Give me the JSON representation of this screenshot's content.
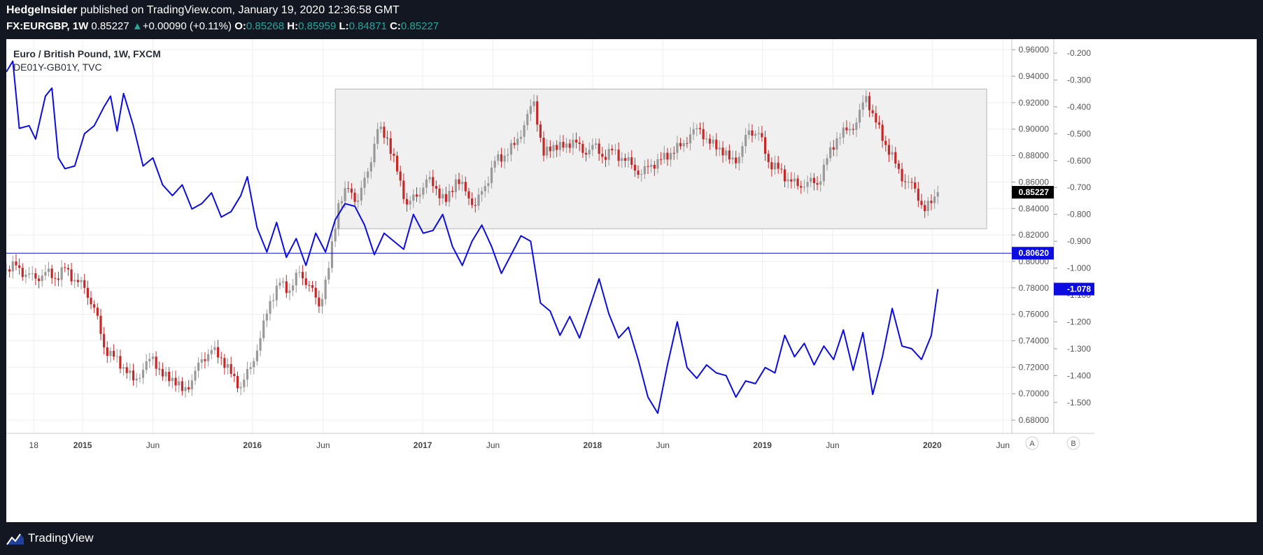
{
  "header": {
    "author": "HedgeInsider",
    "published_text": "published on TradingView.com, January 19, 2020 12:36:58 GMT",
    "symbol": "FX:EURGBP, 1W",
    "last": "0.85227",
    "change_arrow": "▲",
    "change": "+0.00090 (+0.11%)",
    "o_label": "O:",
    "o_value": "0.85268",
    "h_label": "H:",
    "h_value": "0.85959",
    "l_label": "L:",
    "l_value": "0.84871",
    "c_label": "C:",
    "c_value": "0.85227"
  },
  "footer": {
    "brand": "TradingView",
    "logo_icon": "tradingview-logo-icon"
  },
  "scale_buttons": [
    "A",
    "B"
  ],
  "colors": {
    "up_candle": "#999999",
    "down_candle": "#c62828",
    "spread_line": "#0c0ce0",
    "price_label_bg": "#000000",
    "range_box_fill": "#f0f0f0"
  },
  "chart_data": {
    "type": "candlestick",
    "title": "Euro / British Pound, 1W, FXCM",
    "subtitle": "DE01Y-GB01Y, TVC",
    "x_tick_labels": [
      "18",
      "2015",
      "Jun",
      "2016",
      "Jun",
      "2017",
      "Jun",
      "2018",
      "Jun",
      "2019",
      "Jun",
      "2020",
      "Jun"
    ],
    "x_tick_dates": [
      "2014-09-18",
      "2015-01-01",
      "2015-06-01",
      "2016-01-01",
      "2016-06-01",
      "2017-01-01",
      "2017-06-01",
      "2018-01-01",
      "2018-06-01",
      "2019-01-01",
      "2019-06-01",
      "2020-01-01",
      "2020-06-01"
    ],
    "x_range": [
      "2014-07-21",
      "2020-06-20"
    ],
    "grid": true,
    "price_axis": {
      "ticks": [
        "0.68000",
        "0.70000",
        "0.72000",
        "0.74000",
        "0.76000",
        "0.78000",
        "0.80000",
        "0.82000",
        "0.84000",
        "0.86000",
        "0.88000",
        "0.90000",
        "0.92000",
        "0.94000",
        "0.96000"
      ],
      "range": [
        0.67,
        0.968
      ]
    },
    "spread_axis": {
      "ticks": [
        "-0.200",
        "-0.300",
        "-0.400",
        "-0.500",
        "-0.600",
        "-0.700",
        "-0.800",
        "-0.900",
        "-1.000",
        "-1.100",
        "-1.200",
        "-1.300",
        "-1.400",
        "-1.500"
      ],
      "range": [
        -1.615,
        -0.148
      ]
    },
    "current_price_label": "0.85227",
    "current_price": 0.85227,
    "horizontal_line_label": "0.80620",
    "horizontal_line": 0.8062,
    "spread_current_label": "-1.078",
    "spread_current": -1.078,
    "range_box": {
      "from": "2016-06-27",
      "to": "2020-04-27",
      "low": 0.8247,
      "high": 0.9303
    },
    "price_series": {
      "name": "EURGBP",
      "points": [
        [
          "2014-07-21",
          0.794
        ],
        [
          "2014-08-11",
          0.797
        ],
        [
          "2014-09-01",
          0.79
        ],
        [
          "2014-09-22",
          0.787
        ],
        [
          "2014-10-13",
          0.792
        ],
        [
          "2014-11-03",
          0.787
        ],
        [
          "2014-11-24",
          0.795
        ],
        [
          "2014-12-15",
          0.786
        ],
        [
          "2015-01-05",
          0.78
        ],
        [
          "2015-01-26",
          0.765
        ],
        [
          "2015-02-16",
          0.735
        ],
        [
          "2015-03-09",
          0.728
        ],
        [
          "2015-03-30",
          0.72
        ],
        [
          "2015-04-20",
          0.71
        ],
        [
          "2015-05-11",
          0.718
        ],
        [
          "2015-06-01",
          0.728
        ],
        [
          "2015-06-22",
          0.713
        ],
        [
          "2015-07-13",
          0.712
        ],
        [
          "2015-08-03",
          0.702
        ],
        [
          "2015-08-24",
          0.71
        ],
        [
          "2015-09-14",
          0.726
        ],
        [
          "2015-10-05",
          0.733
        ],
        [
          "2015-10-26",
          0.727
        ],
        [
          "2015-11-16",
          0.715
        ],
        [
          "2015-12-07",
          0.705
        ],
        [
          "2015-12-28",
          0.72
        ],
        [
          "2016-01-18",
          0.742
        ],
        [
          "2016-02-08",
          0.77
        ],
        [
          "2016-02-29",
          0.784
        ],
        [
          "2016-03-21",
          0.778
        ],
        [
          "2016-04-11",
          0.792
        ],
        [
          "2016-05-02",
          0.782
        ],
        [
          "2016-05-23",
          0.766
        ],
        [
          "2016-06-13",
          0.795
        ],
        [
          "2016-07-04",
          0.844
        ],
        [
          "2016-07-25",
          0.855
        ],
        [
          "2016-08-15",
          0.846
        ],
        [
          "2016-09-05",
          0.868
        ],
        [
          "2016-09-26",
          0.9
        ],
        [
          "2016-10-17",
          0.893
        ],
        [
          "2016-11-07",
          0.868
        ],
        [
          "2016-11-28",
          0.843
        ],
        [
          "2016-12-19",
          0.849
        ],
        [
          "2017-01-09",
          0.862
        ],
        [
          "2017-01-30",
          0.855
        ],
        [
          "2017-02-20",
          0.845
        ],
        [
          "2017-03-13",
          0.862
        ],
        [
          "2017-04-03",
          0.853
        ],
        [
          "2017-04-24",
          0.842
        ],
        [
          "2017-05-15",
          0.857
        ],
        [
          "2017-06-05",
          0.876
        ],
        [
          "2017-06-26",
          0.88
        ],
        [
          "2017-07-17",
          0.888
        ],
        [
          "2017-08-07",
          0.903
        ],
        [
          "2017-08-28",
          0.921
        ],
        [
          "2017-09-18",
          0.88
        ],
        [
          "2017-10-09",
          0.888
        ],
        [
          "2017-10-30",
          0.886
        ],
        [
          "2017-11-20",
          0.892
        ],
        [
          "2017-12-11",
          0.882
        ],
        [
          "2018-01-01",
          0.888
        ],
        [
          "2018-01-22",
          0.879
        ],
        [
          "2018-02-12",
          0.884
        ],
        [
          "2018-03-05",
          0.878
        ],
        [
          "2018-03-26",
          0.873
        ],
        [
          "2018-04-16",
          0.866
        ],
        [
          "2018-05-07",
          0.873
        ],
        [
          "2018-05-28",
          0.877
        ],
        [
          "2018-06-18",
          0.882
        ],
        [
          "2018-07-09",
          0.887
        ],
        [
          "2018-07-30",
          0.896
        ],
        [
          "2018-08-20",
          0.9
        ],
        [
          "2018-09-10",
          0.889
        ],
        [
          "2018-10-01",
          0.886
        ],
        [
          "2018-10-22",
          0.877
        ],
        [
          "2018-11-12",
          0.879
        ],
        [
          "2018-12-03",
          0.899
        ],
        [
          "2018-12-24",
          0.897
        ],
        [
          "2019-01-14",
          0.875
        ],
        [
          "2019-02-04",
          0.87
        ],
        [
          "2019-02-25",
          0.862
        ],
        [
          "2019-03-18",
          0.857
        ],
        [
          "2019-04-08",
          0.86
        ],
        [
          "2019-04-29",
          0.858
        ],
        [
          "2019-05-20",
          0.878
        ],
        [
          "2019-06-10",
          0.893
        ],
        [
          "2019-07-01",
          0.899
        ],
        [
          "2019-07-22",
          0.905
        ],
        [
          "2019-08-12",
          0.925
        ],
        [
          "2019-09-02",
          0.905
        ],
        [
          "2019-09-23",
          0.888
        ],
        [
          "2019-10-14",
          0.874
        ],
        [
          "2019-11-04",
          0.86
        ],
        [
          "2019-11-25",
          0.855
        ],
        [
          "2019-12-16",
          0.838
        ],
        [
          "2020-01-06",
          0.849
        ],
        [
          "2020-01-13",
          0.8523
        ]
      ]
    },
    "spread_series": {
      "name": "DE01Y-GB01Y",
      "points": [
        [
          "2014-07-21",
          -0.27
        ],
        [
          "2014-08-04",
          -0.23
        ],
        [
          "2014-08-18",
          -0.48
        ],
        [
          "2014-09-08",
          -0.47
        ],
        [
          "2014-09-22",
          -0.52
        ],
        [
          "2014-10-13",
          -0.36
        ],
        [
          "2014-10-27",
          -0.33
        ],
        [
          "2014-11-10",
          -0.59
        ],
        [
          "2014-11-24",
          -0.63
        ],
        [
          "2014-12-15",
          -0.62
        ],
        [
          "2015-01-05",
          -0.5
        ],
        [
          "2015-01-26",
          -0.47
        ],
        [
          "2015-02-16",
          -0.4
        ],
        [
          "2015-03-02",
          -0.36
        ],
        [
          "2015-03-16",
          -0.49
        ],
        [
          "2015-03-30",
          -0.35
        ],
        [
          "2015-04-20",
          -0.47
        ],
        [
          "2015-05-11",
          -0.62
        ],
        [
          "2015-06-01",
          -0.59
        ],
        [
          "2015-06-22",
          -0.69
        ],
        [
          "2015-07-13",
          -0.73
        ],
        [
          "2015-08-03",
          -0.69
        ],
        [
          "2015-08-24",
          -0.78
        ],
        [
          "2015-09-14",
          -0.76
        ],
        [
          "2015-10-05",
          -0.72
        ],
        [
          "2015-10-26",
          -0.81
        ],
        [
          "2015-11-16",
          -0.79
        ],
        [
          "2015-12-07",
          -0.73
        ],
        [
          "2015-12-21",
          -0.66
        ],
        [
          "2016-01-11",
          -0.85
        ],
        [
          "2016-02-01",
          -0.94
        ],
        [
          "2016-02-22",
          -0.83
        ],
        [
          "2016-03-14",
          -0.96
        ],
        [
          "2016-04-04",
          -0.89
        ],
        [
          "2016-04-25",
          -0.99
        ],
        [
          "2016-05-16",
          -0.87
        ],
        [
          "2016-06-06",
          -0.94
        ],
        [
          "2016-06-27",
          -0.82
        ],
        [
          "2016-07-18",
          -0.76
        ],
        [
          "2016-08-08",
          -0.77
        ],
        [
          "2016-08-29",
          -0.84
        ],
        [
          "2016-09-19",
          -0.95
        ],
        [
          "2016-10-10",
          -0.87
        ],
        [
          "2016-10-31",
          -0.9
        ],
        [
          "2016-11-21",
          -0.93
        ],
        [
          "2016-12-12",
          -0.8
        ],
        [
          "2017-01-02",
          -0.87
        ],
        [
          "2017-01-23",
          -0.86
        ],
        [
          "2017-02-13",
          -0.8
        ],
        [
          "2017-03-06",
          -0.92
        ],
        [
          "2017-03-27",
          -0.99
        ],
        [
          "2017-04-17",
          -0.9
        ],
        [
          "2017-05-08",
          -0.84
        ],
        [
          "2017-05-29",
          -0.92
        ],
        [
          "2017-06-19",
          -1.02
        ],
        [
          "2017-07-10",
          -0.95
        ],
        [
          "2017-07-31",
          -0.88
        ],
        [
          "2017-08-21",
          -0.9
        ],
        [
          "2017-09-11",
          -1.13
        ],
        [
          "2017-10-02",
          -1.16
        ],
        [
          "2017-10-23",
          -1.25
        ],
        [
          "2017-11-13",
          -1.18
        ],
        [
          "2017-12-04",
          -1.26
        ],
        [
          "2017-12-25",
          -1.15
        ],
        [
          "2018-01-15",
          -1.04
        ],
        [
          "2018-02-05",
          -1.17
        ],
        [
          "2018-02-26",
          -1.26
        ],
        [
          "2018-03-19",
          -1.22
        ],
        [
          "2018-04-09",
          -1.34
        ],
        [
          "2018-04-30",
          -1.48
        ],
        [
          "2018-05-21",
          -1.54
        ],
        [
          "2018-06-11",
          -1.36
        ],
        [
          "2018-07-02",
          -1.2
        ],
        [
          "2018-07-23",
          -1.37
        ],
        [
          "2018-08-13",
          -1.41
        ],
        [
          "2018-09-03",
          -1.36
        ],
        [
          "2018-09-24",
          -1.39
        ],
        [
          "2018-10-15",
          -1.4
        ],
        [
          "2018-11-05",
          -1.48
        ],
        [
          "2018-11-26",
          -1.42
        ],
        [
          "2018-12-17",
          -1.43
        ],
        [
          "2019-01-07",
          -1.37
        ],
        [
          "2019-01-28",
          -1.39
        ],
        [
          "2019-02-18",
          -1.25
        ],
        [
          "2019-03-11",
          -1.33
        ],
        [
          "2019-04-01",
          -1.28
        ],
        [
          "2019-04-22",
          -1.36
        ],
        [
          "2019-05-13",
          -1.29
        ],
        [
          "2019-06-03",
          -1.34
        ],
        [
          "2019-06-24",
          -1.23
        ],
        [
          "2019-07-15",
          -1.38
        ],
        [
          "2019-08-05",
          -1.24
        ],
        [
          "2019-08-26",
          -1.47
        ],
        [
          "2019-09-16",
          -1.33
        ],
        [
          "2019-10-07",
          -1.15
        ],
        [
          "2019-10-28",
          -1.29
        ],
        [
          "2019-11-18",
          -1.3
        ],
        [
          "2019-12-09",
          -1.34
        ],
        [
          "2019-12-30",
          -1.25
        ],
        [
          "2020-01-13",
          -1.078
        ]
      ]
    }
  }
}
